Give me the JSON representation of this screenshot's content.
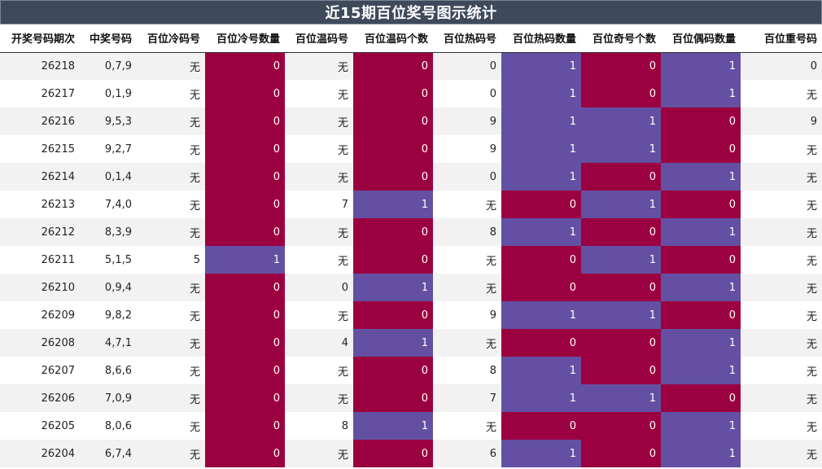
{
  "title": "近15期百位奖号图示统计",
  "colors": {
    "crimson": "#9b0040",
    "purple": "#6350a3",
    "header_bg": "#3e4a5c"
  },
  "columns": [
    "开奖号码期次",
    "中奖号码",
    "百位冷码号",
    "百位冷号数量",
    "百位温码号",
    "百位温码个数",
    "百位热码号",
    "百位热码数量",
    "百位奇号个数",
    "百位偶码数量",
    "百位重号码"
  ],
  "rows": [
    [
      "26218",
      "0,7,9",
      "无",
      "0",
      "无",
      "0",
      "0",
      "1",
      "0",
      "1",
      "0"
    ],
    [
      "26217",
      "0,1,9",
      "无",
      "0",
      "无",
      "0",
      "0",
      "1",
      "0",
      "1",
      "无"
    ],
    [
      "26216",
      "9,5,3",
      "无",
      "0",
      "无",
      "0",
      "9",
      "1",
      "1",
      "0",
      "9"
    ],
    [
      "26215",
      "9,2,7",
      "无",
      "0",
      "无",
      "0",
      "9",
      "1",
      "1",
      "0",
      "无"
    ],
    [
      "26214",
      "0,1,4",
      "无",
      "0",
      "无",
      "0",
      "0",
      "1",
      "0",
      "1",
      "无"
    ],
    [
      "26213",
      "7,4,0",
      "无",
      "0",
      "7",
      "1",
      "无",
      "0",
      "1",
      "0",
      "无"
    ],
    [
      "26212",
      "8,3,9",
      "无",
      "0",
      "无",
      "0",
      "8",
      "1",
      "0",
      "1",
      "无"
    ],
    [
      "26211",
      "5,1,5",
      "5",
      "1",
      "无",
      "0",
      "无",
      "0",
      "1",
      "0",
      "无"
    ],
    [
      "26210",
      "0,9,4",
      "无",
      "0",
      "0",
      "1",
      "无",
      "0",
      "0",
      "1",
      "无"
    ],
    [
      "26209",
      "9,8,2",
      "无",
      "0",
      "无",
      "0",
      "9",
      "1",
      "1",
      "0",
      "无"
    ],
    [
      "26208",
      "4,7,1",
      "无",
      "0",
      "4",
      "1",
      "无",
      "0",
      "0",
      "1",
      "无"
    ],
    [
      "26207",
      "8,6,6",
      "无",
      "0",
      "无",
      "0",
      "8",
      "1",
      "0",
      "1",
      "无"
    ],
    [
      "26206",
      "7,0,9",
      "无",
      "0",
      "无",
      "0",
      "7",
      "1",
      "1",
      "0",
      "无"
    ],
    [
      "26205",
      "8,0,6",
      "无",
      "0",
      "8",
      "1",
      "无",
      "0",
      "0",
      "1",
      "无"
    ],
    [
      "26204",
      "6,7,4",
      "无",
      "0",
      "无",
      "0",
      "6",
      "1",
      "0",
      "1",
      "无"
    ]
  ]
}
